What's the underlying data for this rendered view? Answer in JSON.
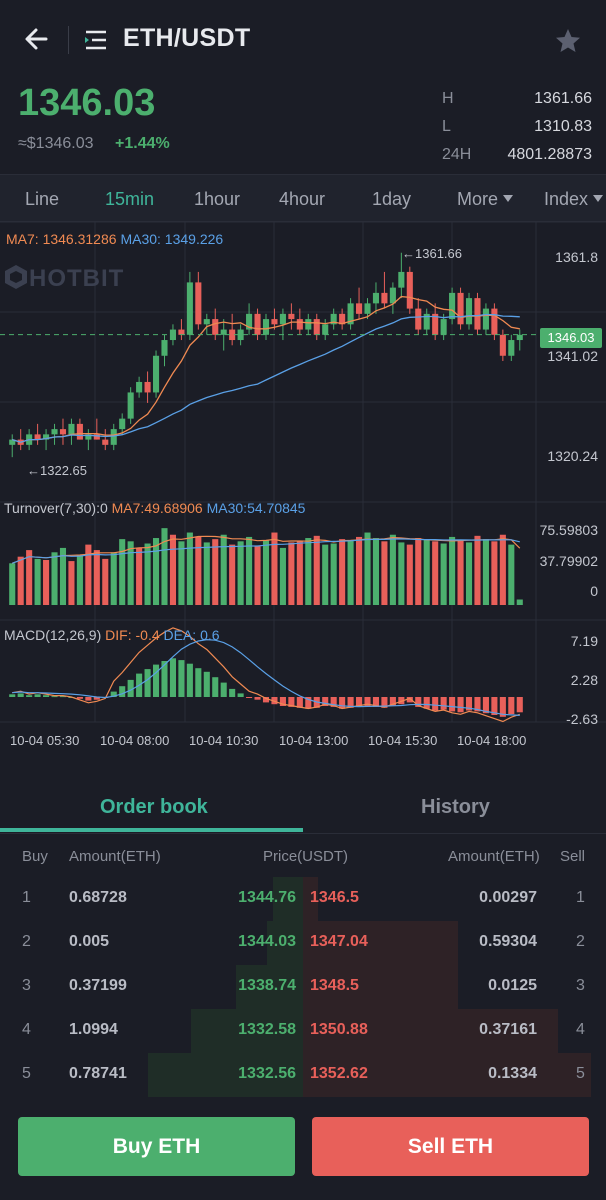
{
  "header": {
    "title": "ETH/USDT"
  },
  "price": {
    "last": "1346.03",
    "usd": "≈$1346.03",
    "change": "+1.44%",
    "stats": [
      {
        "label": "H",
        "value": "1361.66"
      },
      {
        "label": "L",
        "value": "1310.83"
      },
      {
        "label": "24H",
        "value": "4801.28873"
      }
    ]
  },
  "tabs": [
    "Line",
    "15min",
    "1hour",
    "4hour",
    "1day",
    "More",
    "Index"
  ],
  "active_tab": "15min",
  "chart": {
    "watermark": "HOTBIT",
    "ma_legend": {
      "ma7": "MA7:",
      "ma7_value": "1346.31286",
      "ma30": "MA30:",
      "ma30_value": "1349.226"
    },
    "price_axis": [
      "1361.8",
      "1341.02",
      "1320.24"
    ],
    "current_price_tag": "1346.03",
    "high_annotation": "←1361.66",
    "low_annotation": "←1322.65",
    "turnover_legend": {
      "label": "Turnover(7,30):0",
      "ma7": "MA7:49.68906",
      "ma30": "MA30:54.70845"
    },
    "turnover_axis": [
      "75.59803",
      "37.79902",
      "0"
    ],
    "macd_legend": {
      "label": "MACD(12,26,9)",
      "dif": "DIF:",
      "dif_value": "-0.4",
      "dea": "DEA:",
      "dea_value": "0.6"
    },
    "macd_axis": [
      "7.19",
      "2.28",
      "-2.63"
    ],
    "time_axis": [
      "10-04 05:30",
      "10-04 08:00",
      "10-04 10:30",
      "10-04 13:00",
      "10-04 15:30",
      "10-04 18:00"
    ],
    "colors": {
      "up": "#4caf6e",
      "down": "#e8605a",
      "ma7": "#f08a52",
      "ma30": "#5aa0e6"
    }
  },
  "chart_data": {
    "type": "candlestick",
    "y_range": [
      1316,
      1366
    ],
    "candles": [
      [
        1325,
        1327,
        1322.65,
        1326
      ],
      [
        1326,
        1328,
        1324,
        1325
      ],
      [
        1325,
        1328,
        1324,
        1327
      ],
      [
        1327,
        1329,
        1325,
        1326
      ],
      [
        1326,
        1328,
        1324,
        1327
      ],
      [
        1327,
        1329,
        1325,
        1328
      ],
      [
        1328,
        1330,
        1325,
        1327
      ],
      [
        1327,
        1330,
        1325,
        1329
      ],
      [
        1329,
        1330,
        1326,
        1326
      ],
      [
        1326,
        1328,
        1324,
        1327
      ],
      [
        1327,
        1330,
        1326,
        1326
      ],
      [
        1326,
        1328,
        1324,
        1325
      ],
      [
        1325,
        1329,
        1324,
        1328
      ],
      [
        1328,
        1331,
        1327,
        1330
      ],
      [
        1330,
        1336,
        1329,
        1335
      ],
      [
        1335,
        1338,
        1334,
        1337
      ],
      [
        1337,
        1339,
        1333,
        1335
      ],
      [
        1335,
        1343,
        1334,
        1342
      ],
      [
        1342,
        1346,
        1340,
        1345
      ],
      [
        1345,
        1348,
        1344,
        1347
      ],
      [
        1347,
        1349,
        1345,
        1346
      ],
      [
        1346,
        1358,
        1345,
        1356
      ],
      [
        1356,
        1358,
        1347,
        1348
      ],
      [
        1348,
        1350,
        1346,
        1349
      ],
      [
        1349,
        1351,
        1345,
        1346
      ],
      [
        1346,
        1349,
        1343,
        1347
      ],
      [
        1347,
        1350,
        1344,
        1345
      ],
      [
        1345,
        1348,
        1344,
        1347
      ],
      [
        1347,
        1352,
        1346,
        1350
      ],
      [
        1350,
        1351,
        1345,
        1346
      ],
      [
        1346,
        1350,
        1345,
        1349
      ],
      [
        1349,
        1351,
        1347,
        1348
      ],
      [
        1348,
        1351,
        1345,
        1350
      ],
      [
        1350,
        1352,
        1347,
        1349
      ],
      [
        1349,
        1351,
        1346,
        1347
      ],
      [
        1347,
        1350,
        1346,
        1349
      ],
      [
        1349,
        1350,
        1345,
        1346
      ],
      [
        1346,
        1349,
        1345,
        1348
      ],
      [
        1348,
        1351,
        1347,
        1350
      ],
      [
        1350,
        1351,
        1347,
        1348
      ],
      [
        1348,
        1353,
        1347,
        1352
      ],
      [
        1352,
        1355,
        1349,
        1350
      ],
      [
        1350,
        1353,
        1349,
        1352
      ],
      [
        1352,
        1356,
        1350,
        1354
      ],
      [
        1354,
        1358,
        1351,
        1352
      ],
      [
        1352,
        1356,
        1350,
        1355
      ],
      [
        1355,
        1361.66,
        1353,
        1358
      ],
      [
        1358,
        1359,
        1350,
        1351
      ],
      [
        1351,
        1353,
        1346,
        1347
      ],
      [
        1347,
        1351,
        1346,
        1350
      ],
      [
        1350,
        1352,
        1345,
        1346
      ],
      [
        1346,
        1350,
        1345,
        1349
      ],
      [
        1349,
        1355,
        1348,
        1354
      ],
      [
        1354,
        1355,
        1347,
        1348
      ],
      [
        1348,
        1354,
        1347,
        1353
      ],
      [
        1353,
        1354,
        1346,
        1347
      ],
      [
        1347,
        1352,
        1346,
        1351
      ],
      [
        1351,
        1352,
        1345,
        1346
      ],
      [
        1346,
        1347,
        1341,
        1342
      ],
      [
        1342,
        1346,
        1341,
        1345
      ],
      [
        1345,
        1347,
        1343,
        1346
      ]
    ],
    "turnover": [
      38,
      44,
      50,
      42,
      41,
      48,
      52,
      40,
      46,
      55,
      50,
      42,
      48,
      60,
      58,
      52,
      56,
      61,
      70,
      64,
      58,
      66,
      62,
      57,
      60,
      64,
      55,
      58,
      62,
      54,
      59,
      66,
      52,
      57,
      58,
      61,
      63,
      55,
      56,
      60,
      59,
      62,
      66,
      61,
      58,
      64,
      57,
      55,
      61,
      60,
      58,
      56,
      62,
      59,
      57,
      63,
      60,
      58,
      64,
      55,
      5
    ],
    "turnover_up": [
      true,
      false,
      false,
      true,
      false,
      true,
      true,
      false,
      true,
      false,
      false,
      false,
      true,
      true,
      true,
      false,
      true,
      true,
      true,
      false,
      true,
      true,
      false,
      true,
      false,
      true,
      false,
      true,
      true,
      false,
      true,
      false,
      true,
      false,
      false,
      true,
      false,
      true,
      true,
      false,
      true,
      false,
      true,
      true,
      false,
      true,
      true,
      false,
      false,
      true,
      false,
      true,
      true,
      false,
      true,
      false,
      true,
      false,
      false,
      true,
      true
    ],
    "macd_hist": [
      0.3,
      0.4,
      0.2,
      0.3,
      0.2,
      0.1,
      0.1,
      0.0,
      -0.2,
      -0.4,
      -0.3,
      -0.1,
      0.6,
      1.2,
      1.9,
      2.6,
      3.1,
      3.6,
      4.0,
      4.3,
      4.1,
      3.7,
      3.2,
      2.8,
      2.2,
      1.6,
      0.9,
      0.4,
      -0.1,
      -0.3,
      -0.6,
      -0.8,
      -1.0,
      -1.1,
      -1.2,
      -1.3,
      -1.2,
      -1.0,
      -1.1,
      -1.3,
      -1.2,
      -1.1,
      -1.0,
      -1.1,
      -1.2,
      -1.0,
      -0.8,
      -0.6,
      -1.1,
      -1.3,
      -1.5,
      -1.4,
      -1.6,
      -1.7,
      -1.5,
      -1.6,
      -1.8,
      -2.0,
      -2.2,
      -1.9,
      -1.7
    ]
  },
  "orderbook": {
    "tabs": [
      "Order book",
      "History"
    ],
    "headers": {
      "buy": "Buy",
      "amount_buy": "Amount(ETH)",
      "price": "Price(USDT)",
      "amount_sell": "Amount(ETH)",
      "sell": "Sell"
    },
    "rows": [
      {
        "idx": "1",
        "buy_amt": "0.68728",
        "bid": "1344.76",
        "ask": "1346.5",
        "sell_amt": "0.00297",
        "buy_depth": 0.1,
        "sell_depth": 0.05
      },
      {
        "idx": "2",
        "buy_amt": "0.005",
        "bid": "1344.03",
        "ask": "1347.04",
        "sell_amt": "0.59304",
        "buy_depth": 0.12,
        "sell_depth": 0.51
      },
      {
        "idx": "3",
        "buy_amt": "0.37199",
        "bid": "1338.74",
        "ask": "1348.5",
        "sell_amt": "0.0125",
        "buy_depth": 0.22,
        "sell_depth": 0.51
      },
      {
        "idx": "4",
        "buy_amt": "1.0994",
        "bid": "1332.58",
        "ask": "1350.88",
        "sell_amt": "0.37161",
        "buy_depth": 0.37,
        "sell_depth": 0.84
      },
      {
        "idx": "5",
        "buy_amt": "0.78741",
        "bid": "1332.56",
        "ask": "1352.62",
        "sell_amt": "0.1334",
        "buy_depth": 0.51,
        "sell_depth": 0.95
      }
    ]
  },
  "actions": {
    "buy": "Buy ETH",
    "sell": "Sell ETH"
  }
}
